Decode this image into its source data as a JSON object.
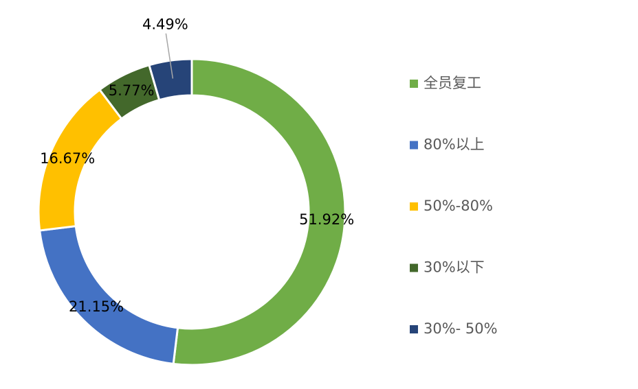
{
  "chart_data": {
    "type": "donut",
    "categories": [
      "全员复工",
      "80%以上",
      "50%-80%",
      "30%以下",
      "30%- 50%"
    ],
    "values": [
      51.92,
      21.15,
      16.67,
      5.77,
      4.49
    ],
    "value_labels": [
      "51.92%",
      "21.15%",
      "16.67%",
      "5.77%",
      "4.49%"
    ],
    "colors": [
      "#70ad47",
      "#4472c4",
      "#ffc000",
      "#43682b",
      "#264478"
    ],
    "legend": "right"
  }
}
